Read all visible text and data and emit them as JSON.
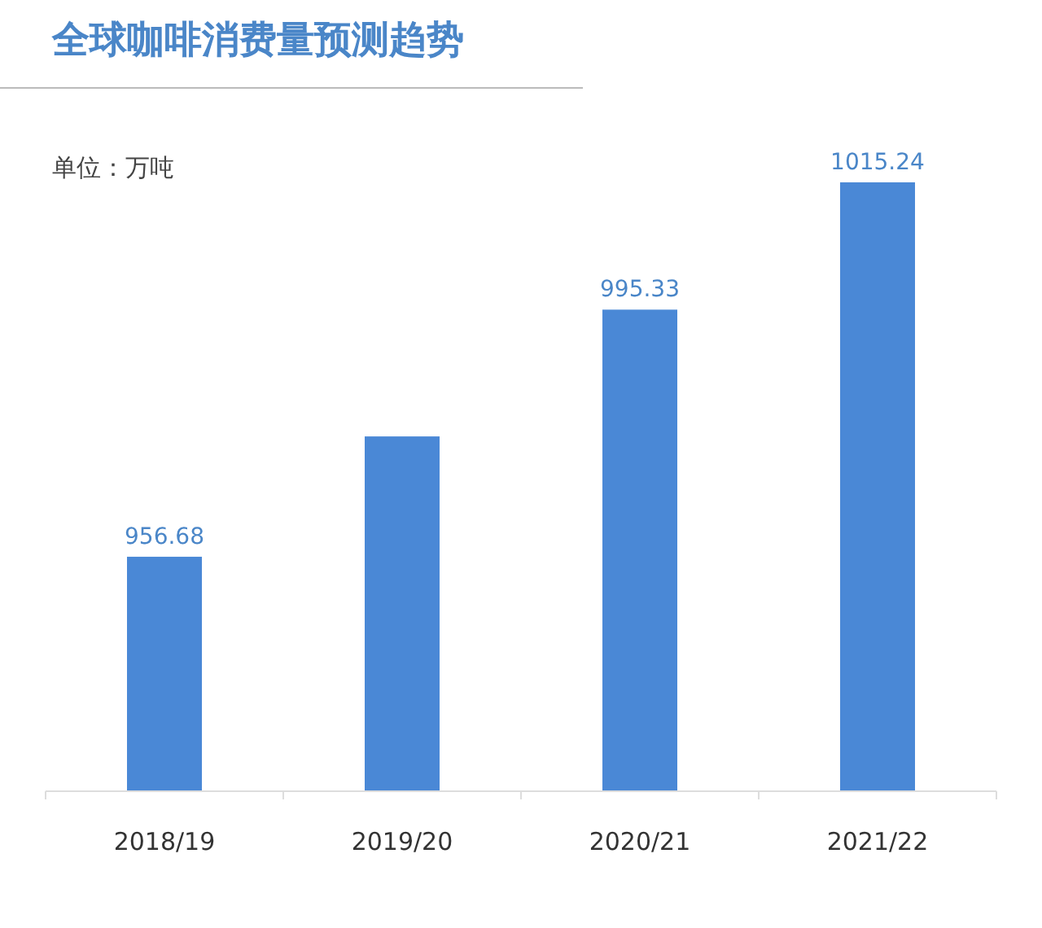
{
  "chart_data": {
    "type": "bar",
    "title": "全球咖啡消费量预测趋势",
    "annotations": [
      "单位：万吨"
    ],
    "categories": [
      "2018/19",
      "2019/20",
      "2020/21",
      "2021/22"
    ],
    "values": [
      956.68,
      975.5,
      995.33,
      1015.24
    ],
    "value_labels": [
      "956.68",
      null,
      "995.33",
      "1015.24"
    ],
    "color": "#4a88d6",
    "ylim": [
      920,
      1015.24
    ],
    "tick_labels": "x"
  }
}
